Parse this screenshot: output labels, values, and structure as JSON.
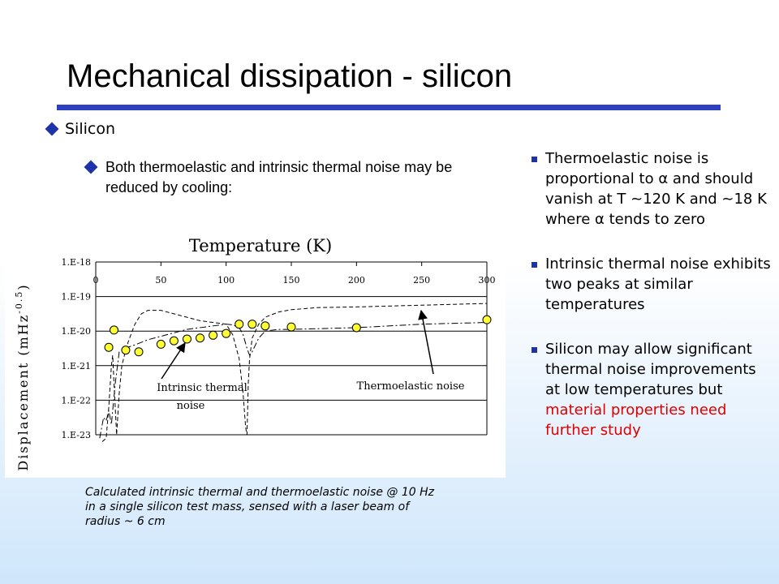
{
  "slide": {
    "title": "Mechanical dissipation - silicon",
    "bullet_main": "Silicon",
    "bullet_sub": "Both thermoelastic and intrinsic thermal noise may be reduced by cooling:",
    "right_bullets": [
      {
        "parts": [
          "Thermoelastic noise is proportional to ",
          "α",
          " and should vanish at T ~120 K and ~18 K where ",
          "α",
          " tends to zero"
        ]
      },
      {
        "text": "Intrinsic thermal noise exhibits two peaks at similar temperatures"
      },
      {
        "text_before": "Silicon may allow significant thermal noise improvements at low temperatures but ",
        "text_red": "material properties need further study"
      }
    ],
    "caption": "Calculated intrinsic thermal and thermoelastic noise @ 10 Hz in a single silicon test mass, sensed with a laser beam of radius ~ 6 cm",
    "colors": {
      "accent": "#2e3fbf",
      "highlight": "#e00000",
      "marker": "#ffff33"
    }
  },
  "chart_data": {
    "type": "line",
    "title": "Temperature (K)",
    "ylabel_main": "Displacement (mHz",
    "ylabel_exp": "-0.5",
    "ylabel_close": ")",
    "x_ticks": [
      "0",
      "50",
      "100",
      "150",
      "200",
      "250",
      "300"
    ],
    "x_tick_values": [
      0,
      50,
      100,
      150,
      200,
      250,
      300
    ],
    "y_ticks": [
      "1.E-18",
      "1.E-19",
      "1.E-20",
      "1.E-21",
      "1.E-22",
      "1.E-23"
    ],
    "y_tick_values": [
      -18,
      -19,
      -20,
      -21,
      -22,
      -23
    ],
    "xlim": [
      0,
      300
    ],
    "ylim_log10": [
      -23,
      -18
    ],
    "y_scale": "log",
    "annotations": [
      {
        "text_lines": [
          "Intrinsic thermal",
          "noise"
        ]
      },
      {
        "text_lines": [
          "Thermoelastic noise"
        ]
      }
    ],
    "series": [
      {
        "name": "Intrinsic thermal noise",
        "style": "dash-dot",
        "x": [
          3,
          6,
          8,
          10,
          12,
          15,
          18,
          22,
          30,
          40,
          50,
          60,
          70,
          80,
          90,
          100,
          105,
          110,
          113,
          116,
          118,
          120,
          125,
          130,
          140,
          150,
          200,
          250,
          300
        ],
        "log10_y": [
          -23.1,
          -22.5,
          -22.6,
          -22.3,
          -22.7,
          -21.5,
          -20.6,
          -20.5,
          -20.4,
          -20.25,
          -20.15,
          -20.05,
          -19.95,
          -19.9,
          -19.85,
          -19.8,
          -19.82,
          -19.9,
          -20.1,
          -20.5,
          -20.7,
          -20.6,
          -20.2,
          -20.0,
          -19.95,
          -19.95,
          -19.9,
          -19.8,
          -19.75
        ]
      },
      {
        "name": "Thermoelastic noise",
        "style": "dashed",
        "x": [
          5,
          8,
          10,
          12,
          13,
          14,
          16,
          18,
          20,
          22,
          25,
          30,
          35,
          40,
          50,
          60,
          70,
          80,
          90,
          100,
          105,
          110,
          113,
          115,
          116,
          117,
          118,
          120,
          125,
          130,
          140,
          150,
          170,
          200,
          250,
          300
        ],
        "log10_y": [
          -23.2,
          -23.1,
          -22.2,
          -21.0,
          -20.7,
          -21.5,
          -23.0,
          -21.8,
          -21.0,
          -20.7,
          -20.3,
          -19.8,
          -19.5,
          -19.4,
          -19.4,
          -19.5,
          -19.6,
          -19.7,
          -19.75,
          -19.8,
          -20.1,
          -20.8,
          -21.8,
          -22.8,
          -23.0,
          -21.5,
          -20.8,
          -20.2,
          -19.8,
          -19.6,
          -19.45,
          -19.38,
          -19.32,
          -19.3,
          -19.25,
          -19.2
        ]
      },
      {
        "name": "Measured points",
        "style": "markers",
        "x": [
          10,
          14,
          23,
          33,
          50,
          60,
          70,
          80,
          90,
          100,
          110,
          120,
          130,
          150,
          200,
          300
        ],
        "log10_y": [
          -20.47,
          -19.97,
          -20.55,
          -20.6,
          -20.38,
          -20.28,
          -20.23,
          -20.2,
          -20.12,
          -20.07,
          -19.8,
          -19.8,
          -19.85,
          -19.88,
          -19.9,
          -19.67
        ]
      }
    ]
  }
}
